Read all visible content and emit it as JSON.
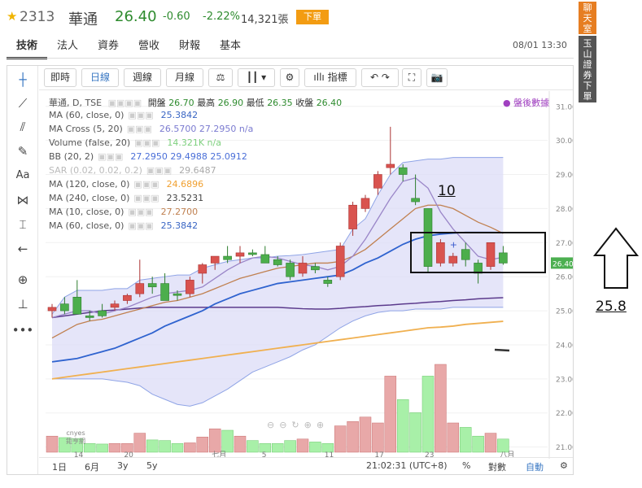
{
  "header": {
    "code": "2313",
    "name": "華通",
    "price": "26.40",
    "change": "-0.60",
    "change_pct": "-2.22%",
    "volume": "14,321張",
    "order_label": "下單"
  },
  "tabs": [
    {
      "label": "技術",
      "active": true
    },
    {
      "label": "法人"
    },
    {
      "label": "資券"
    },
    {
      "label": "營收"
    },
    {
      "label": "財報"
    },
    {
      "label": "基本"
    }
  ],
  "datetime": "08/01 13:30",
  "side_buttons": {
    "chat": "聊天室",
    "order": "玉山證券下單"
  },
  "toolbar": {
    "timeshare": "即時",
    "daily": "日線",
    "weekly": "週線",
    "monthly": "月線",
    "indicators": "指標"
  },
  "legend": {
    "title": "華通, D, TSE",
    "open_label": "開盤",
    "open": "26.70",
    "high_label": "最高",
    "high": "26.90",
    "low_label": "最低",
    "low": "26.35",
    "close_label": "收盤",
    "close": "26.40",
    "after_hours": "盤後數據"
  },
  "indicators": [
    {
      "name": "MA (60, close, 0)",
      "value": "25.3842",
      "color": "#3a66c4"
    },
    {
      "name": "MA Cross (5, 20)",
      "value": "26.5700 27.2950 n/a",
      "color": "#7b7bd0"
    },
    {
      "name": "Volume (false, 20)",
      "value": "14.321K n/a",
      "color": "#7ed07e"
    },
    {
      "name": "BB (20, 2)",
      "value": "27.2950 29.4988 25.0912",
      "color": "#4a6fd8"
    },
    {
      "name": "SAR (0.02, 0.02, 0.2)",
      "value": "29.6487",
      "color": "#aaaaaa"
    },
    {
      "name": "MA (120, close, 0)",
      "value": "24.6896",
      "color": "#f0a030"
    },
    {
      "name": "MA (240, close, 0)",
      "value": "23.5231",
      "color": "#444444"
    },
    {
      "name": "MA (10, close, 0)",
      "value": "27.2700",
      "color": "#c08050"
    },
    {
      "name": "MA (60, close, 0)",
      "value": "25.3842",
      "color": "#3a66c4"
    }
  ],
  "y_axis_ticks": [
    "31.00",
    "30.00",
    "29.00",
    "28.00",
    "27.00",
    "26.00",
    "25.00",
    "24.00",
    "23.00",
    "22.00",
    "21.00"
  ],
  "price_tag": "26.40",
  "x_axis_ticks": [
    "14",
    "20",
    "七月",
    "5",
    "11",
    "17",
    "23",
    "八月"
  ],
  "bottom_bar": {
    "ranges": [
      "1日",
      "6月",
      "3y",
      "5y"
    ],
    "time": "21:02:31 (UTC+8)",
    "pct": "%",
    "log": "對數",
    "auto": "自動"
  },
  "annotations": {
    "label_10": "10",
    "label_258": "25.8"
  },
  "watermark": "cnyes 鉅亨網",
  "colors": {
    "up": "#d9534f",
    "down": "#4cae4c",
    "vol_up": "#e8a8a8",
    "vol_down": "#a8f0a8",
    "bb_fill": "#dcdcf7"
  },
  "chart_data": {
    "type": "candlestick",
    "ylim": [
      20.8,
      31.4
    ],
    "candles": [
      {
        "o": 25.0,
        "h": 25.2,
        "l": 24.8,
        "c": 25.1
      },
      {
        "o": 25.2,
        "h": 25.4,
        "l": 24.9,
        "c": 25.0
      },
      {
        "o": 25.4,
        "h": 25.9,
        "l": 24.9,
        "c": 24.9
      },
      {
        "o": 24.85,
        "h": 25.0,
        "l": 24.7,
        "c": 24.8
      },
      {
        "o": 25.0,
        "h": 25.2,
        "l": 24.8,
        "c": 24.85
      },
      {
        "o": 25.1,
        "h": 25.3,
        "l": 25.0,
        "c": 25.2
      },
      {
        "o": 25.3,
        "h": 25.5,
        "l": 25.2,
        "c": 25.45
      },
      {
        "o": 25.5,
        "h": 26.5,
        "l": 25.4,
        "c": 25.8
      },
      {
        "o": 25.8,
        "h": 26.0,
        "l": 25.5,
        "c": 25.7
      },
      {
        "o": 25.8,
        "h": 26.1,
        "l": 25.3,
        "c": 25.3
      },
      {
        "o": 25.5,
        "h": 25.6,
        "l": 25.3,
        "c": 25.45
      },
      {
        "o": 25.5,
        "h": 26.0,
        "l": 25.4,
        "c": 25.9
      },
      {
        "o": 26.1,
        "h": 26.4,
        "l": 25.8,
        "c": 26.35
      },
      {
        "o": 26.4,
        "h": 26.6,
        "l": 26.2,
        "c": 26.6
      },
      {
        "o": 26.6,
        "h": 26.9,
        "l": 26.4,
        "c": 26.5
      },
      {
        "o": 26.6,
        "h": 26.9,
        "l": 26.4,
        "c": 26.7
      },
      {
        "o": 26.7,
        "h": 26.8,
        "l": 26.6,
        "c": 26.65
      },
      {
        "o": 26.65,
        "h": 26.9,
        "l": 26.4,
        "c": 26.4
      },
      {
        "o": 26.5,
        "h": 26.6,
        "l": 26.3,
        "c": 26.35
      },
      {
        "o": 26.4,
        "h": 26.5,
        "l": 25.9,
        "c": 26.0
      },
      {
        "o": 26.1,
        "h": 26.6,
        "l": 26.0,
        "c": 26.4
      },
      {
        "o": 26.3,
        "h": 26.4,
        "l": 26.1,
        "c": 26.2
      },
      {
        "o": 25.9,
        "h": 26.0,
        "l": 25.7,
        "c": 25.8
      },
      {
        "o": 26.0,
        "h": 27.0,
        "l": 25.9,
        "c": 26.9
      },
      {
        "o": 27.4,
        "h": 28.2,
        "l": 27.2,
        "c": 28.1
      },
      {
        "o": 28.0,
        "h": 28.4,
        "l": 27.9,
        "c": 28.3
      },
      {
        "o": 28.6,
        "h": 29.1,
        "l": 28.4,
        "c": 29.0
      },
      {
        "o": 29.2,
        "h": 30.4,
        "l": 29.0,
        "c": 29.3
      },
      {
        "o": 29.2,
        "h": 29.3,
        "l": 28.8,
        "c": 29.0
      },
      {
        "o": 28.3,
        "h": 29.0,
        "l": 28.1,
        "c": 28.2
      },
      {
        "o": 28.0,
        "h": 28.0,
        "l": 26.1,
        "c": 26.3
      },
      {
        "o": 26.4,
        "h": 27.1,
        "l": 26.3,
        "c": 27.0
      },
      {
        "o": 26.4,
        "h": 26.7,
        "l": 26.3,
        "c": 26.6
      },
      {
        "o": 26.8,
        "h": 27.0,
        "l": 26.3,
        "c": 26.5
      },
      {
        "o": 26.4,
        "h": 26.5,
        "l": 25.8,
        "c": 26.1
      },
      {
        "o": 26.3,
        "h": 27.0,
        "l": 26.2,
        "c": 27.0
      },
      {
        "o": 26.7,
        "h": 26.9,
        "l": 26.35,
        "c": 26.4
      }
    ],
    "volume": [
      5.5,
      5.0,
      4.7,
      3.0,
      2.8,
      3.0,
      3.0,
      6.5,
      4.2,
      4.0,
      3.0,
      3.2,
      5.2,
      8.0,
      7.5,
      5.5,
      4.0,
      3.0,
      3.0,
      4.0,
      4.5,
      3.5,
      3.0,
      9.0,
      10.5,
      12.0,
      10.0,
      26.0,
      18.0,
      13.5,
      26.0,
      30.0,
      10.0,
      8.5,
      5.5,
      6.5,
      4.5
    ],
    "bb_upper": [
      24.9,
      25.4,
      25.6,
      25.6,
      25.6,
      25.65,
      25.65,
      25.9,
      25.95,
      26.0,
      26.05,
      26.05,
      26.25,
      26.35,
      26.45,
      26.5,
      26.55,
      26.55,
      26.6,
      26.62,
      26.65,
      26.7,
      26.75,
      26.8,
      27.4,
      27.7,
      28.4,
      29.0,
      29.35,
      29.4,
      29.45,
      29.45,
      29.5,
      29.5,
      29.5,
      29.5,
      29.5
    ],
    "bb_lower": [
      23.0,
      23.0,
      23.0,
      23.0,
      23.0,
      22.95,
      22.9,
      22.8,
      22.55,
      22.4,
      22.25,
      22.2,
      22.3,
      22.5,
      22.7,
      22.95,
      23.2,
      23.35,
      23.5,
      23.65,
      23.85,
      24.0,
      24.25,
      24.5,
      24.7,
      24.85,
      24.95,
      25.0,
      25.0,
      25.05,
      25.05,
      25.05,
      25.1,
      25.1,
      25.1,
      25.1,
      25.1
    ],
    "ma5": [
      24.8,
      24.9,
      25.0,
      25.0,
      24.9,
      25.0,
      25.1,
      25.25,
      25.4,
      25.5,
      25.55,
      25.6,
      25.7,
      25.95,
      26.2,
      26.4,
      26.55,
      26.6,
      26.55,
      26.45,
      26.35,
      26.3,
      26.2,
      26.3,
      26.6,
      27.1,
      27.7,
      28.3,
      28.8,
      28.9,
      28.6,
      27.9,
      27.4,
      27.0,
      26.6,
      26.5,
      26.57
    ],
    "ma10": [
      24.2,
      24.4,
      24.6,
      24.7,
      24.75,
      24.85,
      24.95,
      25.05,
      25.15,
      25.25,
      25.3,
      25.4,
      25.5,
      25.65,
      25.8,
      25.95,
      26.05,
      26.15,
      26.25,
      26.3,
      26.35,
      26.4,
      26.4,
      26.45,
      26.6,
      26.8,
      27.1,
      27.4,
      27.7,
      28.0,
      28.1,
      28.1,
      28.0,
      27.8,
      27.6,
      27.45,
      27.27
    ],
    "ma20": [
      23.5,
      23.55,
      23.6,
      23.7,
      23.8,
      23.9,
      24.05,
      24.2,
      24.35,
      24.55,
      24.7,
      24.85,
      25.0,
      25.2,
      25.35,
      25.5,
      25.6,
      25.7,
      25.8,
      25.85,
      25.9,
      25.95,
      26.0,
      26.05,
      26.2,
      26.4,
      26.55,
      26.75,
      26.95,
      27.1,
      27.2,
      27.25,
      27.28,
      27.3,
      27.3,
      27.3,
      27.295
    ],
    "ma60": [
      24.8,
      24.85,
      24.9,
      24.95,
      25.0,
      25.02,
      25.05,
      25.08,
      25.1,
      25.1,
      25.1,
      25.1,
      25.1,
      25.1,
      25.1,
      25.1,
      25.1,
      25.1,
      25.1,
      25.08,
      25.06,
      25.05,
      25.05,
      25.07,
      25.1,
      25.12,
      25.15,
      25.17,
      25.2,
      25.22,
      25.25,
      25.27,
      25.3,
      25.32,
      25.35,
      25.37,
      25.3842
    ],
    "ma120": [
      23.0,
      23.05,
      23.1,
      23.15,
      23.2,
      23.25,
      23.3,
      23.35,
      23.4,
      23.45,
      23.5,
      23.55,
      23.6,
      23.65,
      23.7,
      23.75,
      23.8,
      23.85,
      23.9,
      23.95,
      24.0,
      24.05,
      24.1,
      24.15,
      24.2,
      24.25,
      24.3,
      24.35,
      24.4,
      24.45,
      24.5,
      24.52,
      24.55,
      24.6,
      24.63,
      24.66,
      24.6896
    ],
    "sar": {
      "index": 32,
      "value": 26.95
    }
  }
}
